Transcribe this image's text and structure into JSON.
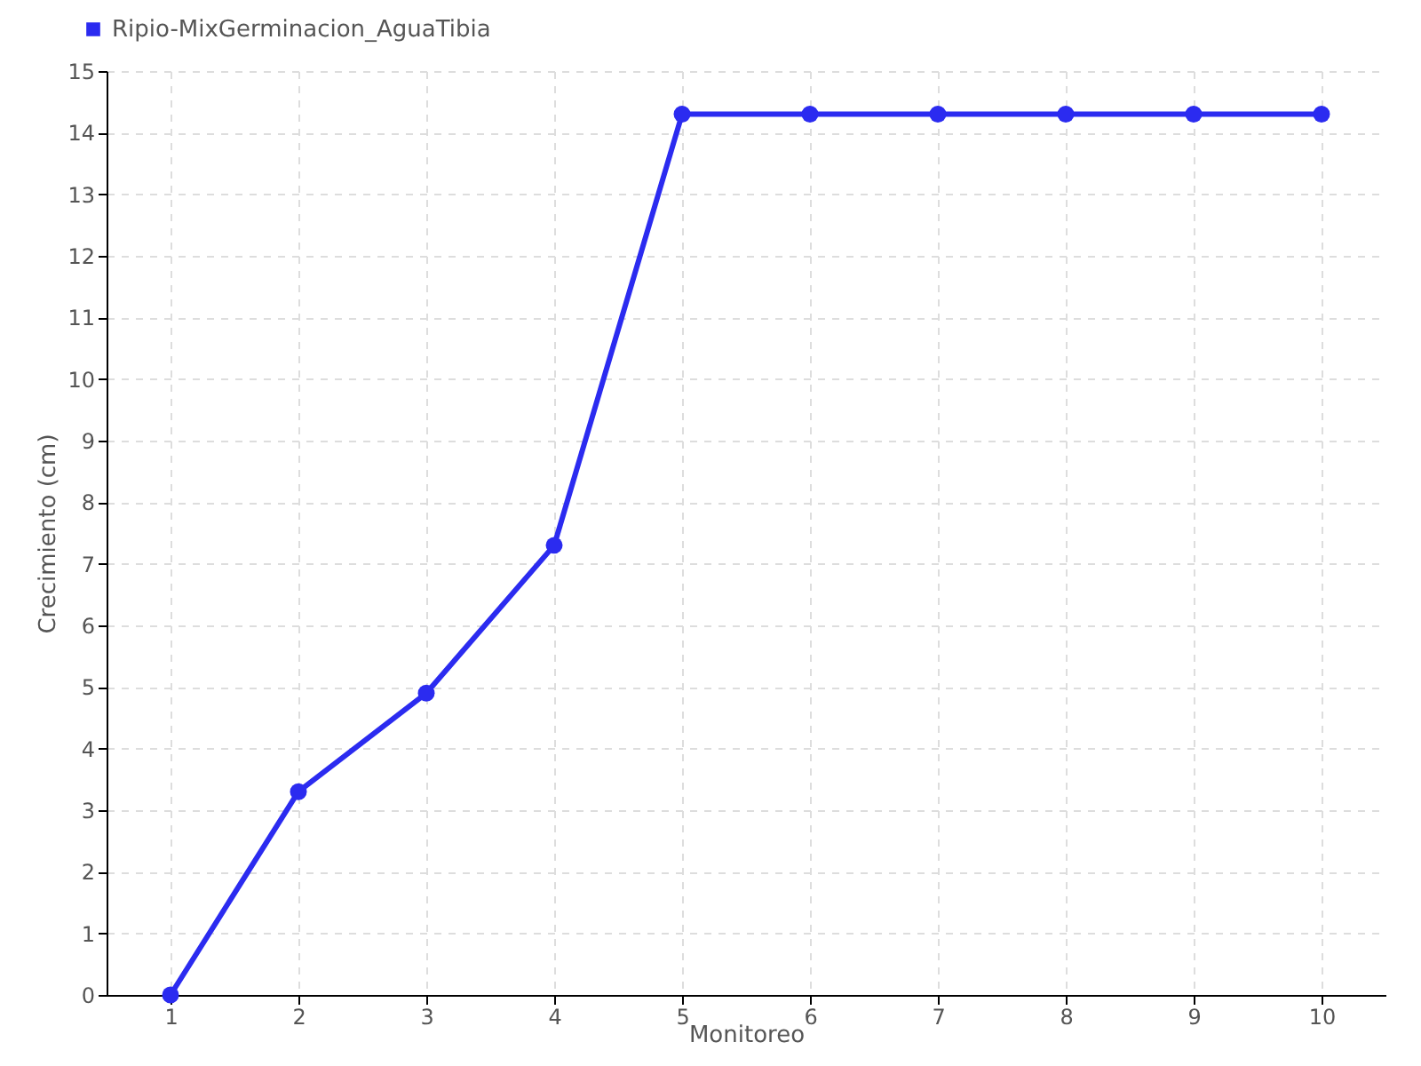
{
  "chart_data": {
    "type": "line",
    "xlabel": "Monitoreo",
    "ylabel": "Crecimiento (cm)",
    "x": [
      1,
      2,
      3,
      4,
      5,
      6,
      7,
      8,
      9,
      10
    ],
    "series": [
      {
        "name": "Ripio-MixGerminacion_AguaTibia",
        "color": "#2b2bf0",
        "values": [
          0,
          3.3,
          4.9,
          7.3,
          14.3,
          14.3,
          14.3,
          14.3,
          14.3,
          14.3
        ]
      }
    ],
    "xlim": [
      0.5,
      10.5
    ],
    "xticks": [
      1,
      2,
      3,
      4,
      5,
      6,
      7,
      8,
      9,
      10
    ],
    "ylim": [
      0,
      15
    ],
    "yticks": [
      0,
      1,
      2,
      3,
      4,
      5,
      6,
      7,
      8,
      9,
      10,
      11,
      12,
      13,
      14,
      15
    ],
    "grid": true,
    "legend": "top left",
    "marker": "circle",
    "line_style": "solid"
  }
}
